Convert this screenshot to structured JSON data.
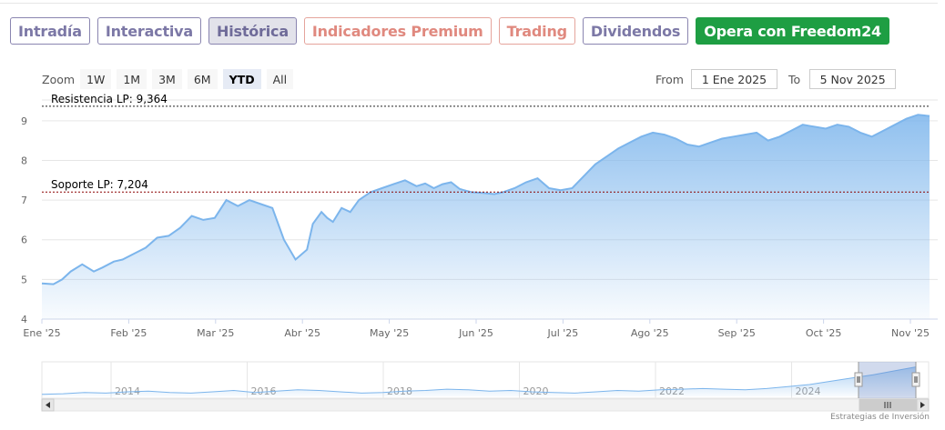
{
  "tabs": [
    {
      "label": "Intradía",
      "style": "normal"
    },
    {
      "label": "Interactiva",
      "style": "normal"
    },
    {
      "label": "Histórica",
      "style": "active"
    },
    {
      "label": "Indicadores Premium",
      "style": "warn"
    },
    {
      "label": "Trading",
      "style": "warn"
    },
    {
      "label": "Dividendos",
      "style": "normal"
    },
    {
      "label": "Opera con Freedom24",
      "style": "cta"
    }
  ],
  "zoom": {
    "label": "Zoom",
    "buttons": [
      "1W",
      "1M",
      "3M",
      "6M",
      "YTD",
      "All"
    ],
    "selected": "YTD"
  },
  "range": {
    "from_label": "From",
    "from_value": "1 Ene 2025",
    "to_label": "To",
    "to_value": "5 Nov 2025"
  },
  "chart_data": {
    "type": "area",
    "x_tick_labels": [
      "Ene '25",
      "Feb '25",
      "Mar '25",
      "Abr '25",
      "May '25",
      "Jun '25",
      "Jul '25",
      "Ago '25",
      "Sep '25",
      "Oct '25",
      "Nov '25"
    ],
    "y_tick_labels": [
      "4",
      "5",
      "6",
      "7",
      "8",
      "9"
    ],
    "ylim": [
      4,
      9.5
    ],
    "grid": true,
    "line_color": "#7cb5ec",
    "x": [
      0,
      4,
      7,
      10,
      14,
      18,
      21,
      25,
      28,
      32,
      36,
      40,
      44,
      48,
      52,
      56,
      60,
      64,
      68,
      72,
      76,
      80,
      84,
      88,
      92,
      94,
      97,
      99,
      101,
      104,
      107,
      110,
      114,
      118,
      122,
      126,
      130,
      133,
      136,
      139,
      142,
      145,
      149,
      153,
      157,
      160,
      164,
      168,
      172,
      176,
      180,
      184,
      188,
      192,
      196,
      200,
      204,
      208,
      212,
      216,
      220,
      224,
      228,
      232,
      236,
      240,
      244,
      248,
      252,
      256,
      260,
      264,
      268,
      272,
      276,
      280,
      284,
      288,
      292,
      296,
      300,
      304,
      308
    ],
    "y": [
      4.9,
      4.88,
      5.0,
      5.2,
      5.38,
      5.2,
      5.3,
      5.45,
      5.5,
      5.65,
      5.8,
      6.05,
      6.1,
      6.3,
      6.6,
      6.5,
      6.55,
      7.0,
      6.85,
      7.0,
      6.9,
      6.8,
      6.0,
      5.5,
      5.75,
      6.4,
      6.7,
      6.55,
      6.45,
      6.8,
      6.7,
      7.0,
      7.2,
      7.3,
      7.4,
      7.5,
      7.35,
      7.42,
      7.3,
      7.4,
      7.45,
      7.28,
      7.2,
      7.18,
      7.15,
      7.2,
      7.3,
      7.45,
      7.55,
      7.3,
      7.25,
      7.3,
      7.6,
      7.9,
      8.1,
      8.3,
      8.45,
      8.6,
      8.7,
      8.65,
      8.55,
      8.4,
      8.35,
      8.45,
      8.55,
      8.6,
      8.65,
      8.7,
      8.5,
      8.6,
      8.75,
      8.9,
      8.85,
      8.8,
      8.9,
      8.85,
      8.7,
      8.6,
      8.75,
      8.9,
      9.05,
      9.15,
      9.12
    ],
    "lines": [
      {
        "label": "Resistencia LP: 9,364",
        "value": 9.364,
        "color": "#222222"
      },
      {
        "label": "Soporte LP: 7,204",
        "value": 7.204,
        "color": "#8b0000"
      }
    ],
    "navigator": {
      "year_labels": [
        "2014",
        "2016",
        "2018",
        "2020",
        "2022",
        "2024"
      ],
      "values": [
        4.8,
        4.9,
        5.1,
        5.0,
        5.2,
        5.3,
        5.1,
        5.0,
        5.2,
        5.4,
        5.1,
        5.3,
        5.5,
        5.4,
        5.2,
        5.0,
        5.1,
        5.3,
        5.4,
        5.6,
        5.5,
        5.3,
        5.4,
        5.2,
        5.1,
        5.0,
        5.2,
        5.4,
        5.3,
        5.5,
        5.6,
        5.7,
        5.6,
        5.5,
        5.7,
        6.0,
        6.3,
        6.8,
        7.3,
        7.8,
        8.4,
        9.0
      ]
    }
  },
  "credit": "Estrategias de Inversión"
}
